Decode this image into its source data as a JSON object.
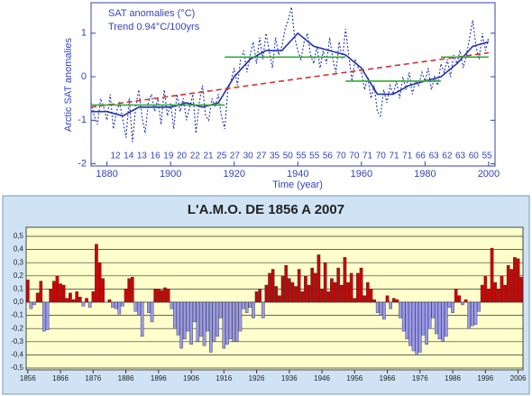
{
  "chart_data": [
    {
      "type": "line",
      "title": "SAT anomalies (°C)",
      "subtitle": "Trend 0.94°C/100yrs",
      "ylabel": "Arctic SAT anomalies",
      "xlabel": "Time (year)",
      "xlim": [
        1875,
        2002
      ],
      "ylim": [
        -2.05,
        1.7
      ],
      "xticks": [
        1880,
        1900,
        1920,
        1940,
        1960,
        1980,
        2000
      ],
      "yticks": [
        -2,
        -1,
        0,
        1
      ],
      "annotations": [
        12,
        14,
        13,
        16,
        19,
        20,
        22,
        21,
        25,
        27,
        30,
        27,
        35,
        50,
        55,
        55,
        56,
        70,
        70,
        71,
        70,
        71,
        71,
        66,
        63,
        62,
        63,
        60,
        55
      ],
      "series": [
        {
          "color": "#3344bb",
          "style": "dotted",
          "x": [
            1875,
            1876,
            1877,
            1878,
            1879,
            1880,
            1881,
            1882,
            1883,
            1884,
            1885,
            1886,
            1887,
            1888,
            1889,
            1890,
            1891,
            1892,
            1893,
            1894,
            1895,
            1896,
            1897,
            1898,
            1899,
            1900,
            1901,
            1902,
            1903,
            1904,
            1905,
            1906,
            1907,
            1908,
            1909,
            1910,
            1911,
            1912,
            1913,
            1914,
            1915,
            1916,
            1917,
            1918,
            1919,
            1920,
            1921,
            1922,
            1923,
            1924,
            1925,
            1926,
            1927,
            1928,
            1929,
            1930,
            1931,
            1932,
            1933,
            1934,
            1935,
            1936,
            1937,
            1938,
            1939,
            1940,
            1941,
            1942,
            1943,
            1944,
            1945,
            1946,
            1947,
            1948,
            1949,
            1950,
            1951,
            1952,
            1953,
            1954,
            1955,
            1956,
            1957,
            1958,
            1959,
            1960,
            1961,
            1962,
            1963,
            1964,
            1965,
            1966,
            1967,
            1968,
            1969,
            1970,
            1971,
            1972,
            1973,
            1974,
            1975,
            1976,
            1977,
            1978,
            1979,
            1980,
            1981,
            1982,
            1983,
            1984,
            1985,
            1986,
            1987,
            1988,
            1989,
            1990,
            1991,
            1992,
            1993,
            1994,
            1995,
            1996,
            1997,
            1998,
            1999,
            2000
          ],
          "values": [
            -0.6,
            -0.9,
            -1.1,
            -0.5,
            -0.7,
            -1.0,
            -0.4,
            -1.2,
            -0.8,
            -0.6,
            -1.0,
            -1.4,
            -0.5,
            -1.5,
            -0.7,
            -0.3,
            -0.9,
            -1.3,
            -0.6,
            -0.4,
            -0.8,
            -0.5,
            -1.1,
            -0.3,
            -0.9,
            -0.6,
            -1.2,
            -0.4,
            -0.8,
            -0.5,
            -1.0,
            -0.7,
            -0.4,
            -1.3,
            -0.6,
            -0.2,
            -0.9,
            -1.0,
            -0.5,
            -0.7,
            -0.4,
            -0.9,
            -1.2,
            -0.3,
            -0.1,
            0.2,
            -0.2,
            0.4,
            0.6,
            0.1,
            0.5,
            0.8,
            0.3,
            0.9,
            0.4,
            1.0,
            0.6,
            0.2,
            0.9,
            0.5,
            0.7,
            1.1,
            1.3,
            1.6,
            0.9,
            0.6,
            0.4,
            0.8,
            1.0,
            0.5,
            0.3,
            0.7,
            0.2,
            0.6,
            0.3,
            0.9,
            0.4,
            0.1,
            0.8,
            0.4,
            1.1,
            0.5,
            -0.1,
            0.4,
            0.2,
            0.1,
            -0.3,
            0.0,
            -0.5,
            -0.2,
            -0.8,
            -0.9,
            -0.3,
            -0.6,
            -0.2,
            -0.4,
            -0.1,
            -0.5,
            0.0,
            -0.3,
            0.1,
            -0.4,
            -0.1,
            -0.2,
            0.1,
            -0.1,
            0.2,
            -0.3,
            0.0,
            -0.2,
            0.3,
            0.1,
            0.4,
            0.0,
            0.5,
            0.3,
            0.6,
            0.2,
            0.5,
            0.9,
            1.3,
            0.7,
            0.4,
            1.0,
            0.6,
            0.9
          ]
        },
        {
          "color": "#2233aa",
          "style": "solid",
          "x": [
            1875,
            1880,
            1885,
            1890,
            1895,
            1900,
            1905,
            1910,
            1915,
            1920,
            1925,
            1930,
            1935,
            1940,
            1945,
            1950,
            1955,
            1960,
            1965,
            1970,
            1975,
            1980,
            1985,
            1990,
            1995,
            2000
          ],
          "values": [
            -0.8,
            -0.8,
            -0.9,
            -0.7,
            -0.7,
            -0.7,
            -0.6,
            -0.7,
            -0.6,
            0.0,
            0.4,
            0.6,
            0.6,
            1.0,
            0.7,
            0.6,
            0.5,
            0.2,
            -0.4,
            -0.4,
            -0.2,
            -0.1,
            0.0,
            0.3,
            0.7,
            0.8
          ]
        },
        {
          "color": "#cc3333",
          "style": "dashed",
          "x": [
            1875,
            2000
          ],
          "values": [
            -0.7,
            0.55
          ]
        },
        {
          "color": "#33aa33",
          "style": "solid",
          "x": [
            1875,
            1917
          ],
          "values": [
            -0.65,
            -0.65
          ]
        },
        {
          "color": "#33aa33",
          "style": "solid",
          "x": [
            1917,
            1955
          ],
          "values": [
            0.45,
            0.45
          ]
        },
        {
          "color": "#33aa33",
          "style": "solid",
          "x": [
            1955,
            1985
          ],
          "values": [
            -0.1,
            -0.1
          ]
        },
        {
          "color": "#33aa33",
          "style": "solid",
          "x": [
            1985,
            2000
          ],
          "values": [
            0.45,
            0.45
          ]
        }
      ]
    },
    {
      "type": "bar",
      "title": "L'A.M.O. DE 1856 A 2007",
      "positive_color": "#cc0000",
      "negative_color": "#9999ee",
      "grid": true,
      "xlim": [
        1855.5,
        2007.5
      ],
      "ylim": [
        -0.5,
        0.5
      ],
      "xticks": [
        1856,
        1866,
        1876,
        1886,
        1896,
        1906,
        1916,
        1926,
        1936,
        1946,
        1956,
        1966,
        1976,
        1986,
        1996,
        2006
      ],
      "yticks": [
        {
          "value": 0.5,
          "label": "0,5"
        },
        {
          "value": 0.4,
          "label": "0,4"
        },
        {
          "value": 0.3,
          "label": "0,3"
        },
        {
          "value": 0.2,
          "label": "0,2"
        },
        {
          "value": 0.1,
          "label": "0,1"
        },
        {
          "value": 0,
          "label": "0,0"
        },
        {
          "value": -0.1,
          "label": "-0,1"
        },
        {
          "value": -0.2,
          "label": "-0,2"
        },
        {
          "value": -0.3,
          "label": "-0,3"
        },
        {
          "value": -0.4,
          "label": "-0,4"
        },
        {
          "value": -0.5,
          "label": "-0,5"
        }
      ],
      "x": [
        1856,
        1857,
        1858,
        1859,
        1860,
        1861,
        1862,
        1863,
        1864,
        1865,
        1866,
        1867,
        1868,
        1869,
        1870,
        1871,
        1872,
        1873,
        1874,
        1875,
        1876,
        1877,
        1878,
        1879,
        1880,
        1881,
        1882,
        1883,
        1884,
        1885,
        1886,
        1887,
        1888,
        1889,
        1890,
        1891,
        1892,
        1893,
        1894,
        1895,
        1896,
        1897,
        1898,
        1899,
        1900,
        1901,
        1902,
        1903,
        1904,
        1905,
        1906,
        1907,
        1908,
        1909,
        1910,
        1911,
        1912,
        1913,
        1914,
        1915,
        1916,
        1917,
        1918,
        1919,
        1920,
        1921,
        1922,
        1923,
        1924,
        1925,
        1926,
        1927,
        1928,
        1929,
        1930,
        1931,
        1932,
        1933,
        1934,
        1935,
        1936,
        1937,
        1938,
        1939,
        1940,
        1941,
        1942,
        1943,
        1944,
        1945,
        1946,
        1947,
        1948,
        1949,
        1950,
        1951,
        1952,
        1953,
        1954,
        1955,
        1956,
        1957,
        1958,
        1959,
        1960,
        1961,
        1962,
        1963,
        1964,
        1965,
        1966,
        1967,
        1968,
        1969,
        1970,
        1971,
        1972,
        1973,
        1974,
        1975,
        1976,
        1977,
        1978,
        1979,
        1980,
        1981,
        1982,
        1983,
        1984,
        1985,
        1986,
        1987,
        1988,
        1989,
        1990,
        1991,
        1992,
        1993,
        1994,
        1995,
        1996,
        1997,
        1998,
        1999,
        2000,
        2001,
        2002,
        2003,
        2004,
        2005,
        2006,
        2007
      ],
      "values": [
        0.17,
        -0.05,
        -0.02,
        0.07,
        0.16,
        -0.22,
        -0.21,
        0.1,
        0.16,
        0.2,
        0.14,
        0.13,
        0.03,
        0.07,
        0.02,
        0.08,
        0.04,
        -0.03,
        0.03,
        -0.04,
        0.08,
        0.44,
        0.3,
        0.18,
        0.0,
        0.02,
        -0.04,
        -0.05,
        -0.09,
        -0.03,
        0.1,
        0.18,
        0.19,
        -0.07,
        -0.1,
        -0.26,
        0.0,
        -0.08,
        -0.15,
        0.1,
        0.1,
        0.09,
        0.11,
        0.1,
        -0.05,
        -0.2,
        -0.25,
        -0.35,
        -0.28,
        -0.22,
        -0.32,
        -0.15,
        -0.3,
        -0.26,
        -0.33,
        -0.22,
        -0.38,
        -0.3,
        -0.26,
        -0.12,
        -0.35,
        -0.32,
        -0.28,
        -0.3,
        -0.3,
        -0.22,
        -0.05,
        -0.08,
        -0.04,
        -0.12,
        0.08,
        0.1,
        -0.12,
        0.13,
        0.22,
        0.25,
        0.12,
        0.05,
        0.2,
        0.28,
        0.18,
        0.15,
        0.12,
        0.25,
        0.08,
        0.2,
        0.13,
        0.26,
        0.22,
        0.36,
        0.1,
        0.3,
        0.08,
        0.18,
        0.15,
        0.26,
        0.13,
        0.34,
        0.15,
        0.22,
        0.03,
        0.22,
        0.26,
        0.05,
        0.15,
        0.1,
        0.02,
        -0.08,
        -0.1,
        -0.13,
        0.05,
        -0.05,
        0.03,
        0.02,
        -0.12,
        -0.22,
        -0.28,
        -0.33,
        -0.37,
        -0.4,
        -0.38,
        -0.25,
        -0.32,
        -0.2,
        -0.12,
        -0.24,
        -0.28,
        -0.3,
        -0.26,
        -0.04,
        -0.08,
        0.1,
        0.05,
        -0.02,
        0.02,
        -0.2,
        -0.18,
        -0.17,
        -0.07,
        0.13,
        0.2,
        0.1,
        0.41,
        0.15,
        0.1,
        0.2,
        0.13,
        0.28,
        0.25,
        0.34,
        0.33,
        0.19
      ]
    }
  ]
}
